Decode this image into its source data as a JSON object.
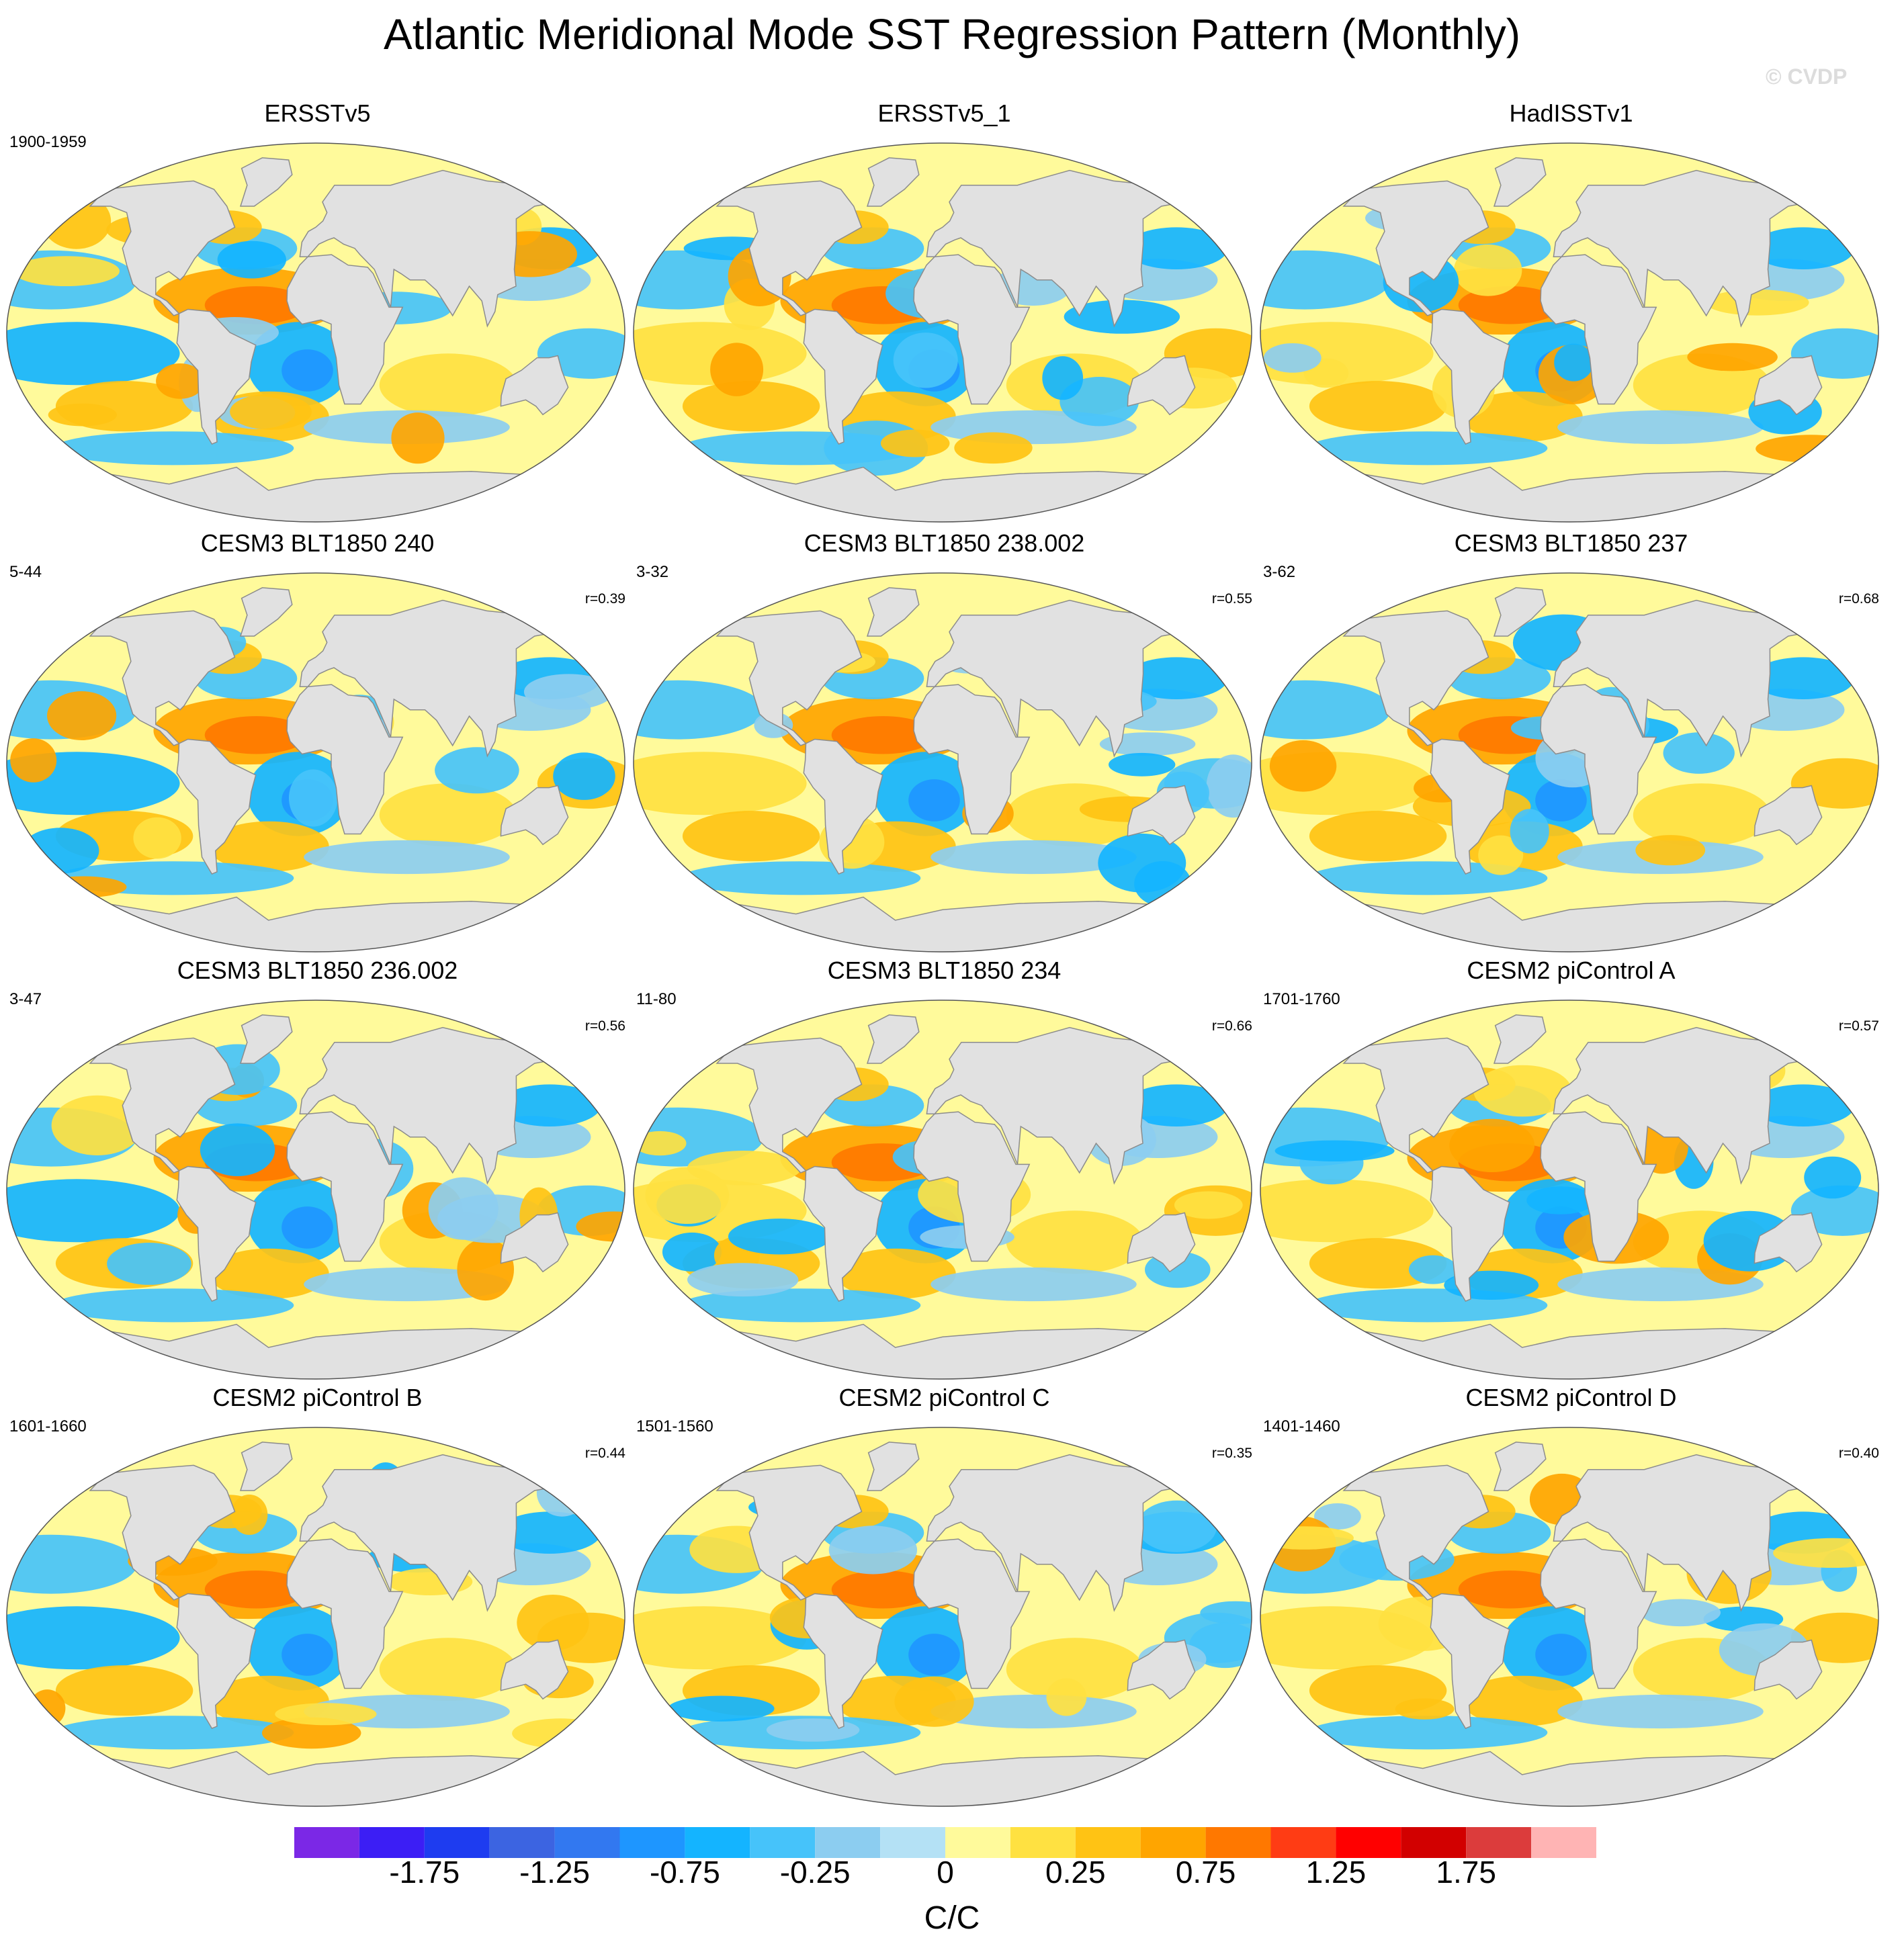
{
  "chart_data": {
    "type": "heatmap",
    "title": "Atlantic Meridional Mode SST Regression Pattern (Monthly)",
    "watermark": "© CVDP",
    "projection": "Robinson (global map)",
    "colorbar": {
      "units": "C/C",
      "levels": [
        -2.0,
        -1.75,
        -1.5,
        -1.25,
        -1.0,
        -0.75,
        -0.5,
        -0.25,
        -0.1,
        0.0,
        0.1,
        0.25,
        0.5,
        0.75,
        1.0,
        1.25,
        1.5,
        1.75,
        2.0
      ],
      "tick_labels": [
        "-1.75",
        "-1.25",
        "-0.75",
        "-0.25",
        "0",
        "0.25",
        "0.75",
        "1.25",
        "1.75"
      ],
      "colors": [
        "#7b28e6",
        "#3c1ef5",
        "#1e3cf0",
        "#3c64e1",
        "#3278f0",
        "#1e96ff",
        "#14b4ff",
        "#46c3fa",
        "#8ccdf0",
        "#b4e1f5",
        "#fffa9b",
        "#ffe141",
        "#ffc314",
        "#ffa500",
        "#ff7800",
        "#ff3c14",
        "#ff0000",
        "#d20000",
        "#dc3c3c",
        "#ffb4b4"
      ]
    },
    "panels": [
      {
        "name": "ERSSTv5",
        "years": "1900-1959",
        "r": ""
      },
      {
        "name": "ERSSTv5_1",
        "years": "",
        "r": ""
      },
      {
        "name": "HadISSTv1",
        "years": "",
        "r": ""
      },
      {
        "name": "CESM3 BLT1850 240",
        "years": "5-44",
        "r": "r=0.39"
      },
      {
        "name": "CESM3 BLT1850 238.002",
        "years": "3-32",
        "r": "r=0.55"
      },
      {
        "name": "CESM3 BLT1850 237",
        "years": "3-62",
        "r": "r=0.68"
      },
      {
        "name": "CESM3 BLT1850 236.002",
        "years": "3-47",
        "r": "r=0.56"
      },
      {
        "name": "CESM3 BLT1850 234",
        "years": "11-80",
        "r": "r=0.66"
      },
      {
        "name": "CESM2 piControl A",
        "years": "1701-1760",
        "r": "r=0.57"
      },
      {
        "name": "CESM2 piControl B",
        "years": "1601-1660",
        "r": "r=0.44"
      },
      {
        "name": "CESM2 piControl C",
        "years": "1501-1560",
        "r": "r=0.35"
      },
      {
        "name": "CESM2 piControl D",
        "years": "1401-1460",
        "r": "r=0.40"
      }
    ]
  }
}
